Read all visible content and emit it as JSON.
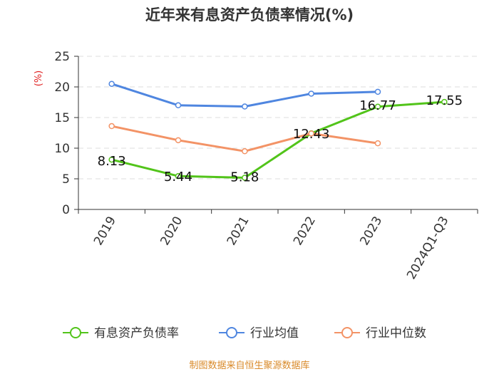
{
  "chart_data": {
    "type": "line",
    "title": "近年来有息资产负债率情况(%)",
    "ylabel": "(%)",
    "categories": [
      "2019",
      "2020",
      "2021",
      "2022",
      "2023",
      "2024Q1-Q3"
    ],
    "ylim": [
      0,
      25
    ],
    "yticks": [
      0,
      5,
      10,
      15,
      20,
      25
    ],
    "grid": true,
    "legend_position": "bottom",
    "series": [
      {
        "name": "有息资产负债率",
        "color": "#52c41a",
        "values": [
          8.13,
          5.44,
          5.18,
          12.43,
          16.77,
          17.55
        ],
        "labels": [
          "8.13",
          "5.44",
          "5.18",
          "12.43",
          "16.77",
          "17.55"
        ]
      },
      {
        "name": "行业均值",
        "color": "#4f86e0",
        "values": [
          20.5,
          17.0,
          16.8,
          18.9,
          19.2,
          null
        ]
      },
      {
        "name": "行业中位数",
        "color": "#f39366",
        "values": [
          13.6,
          11.3,
          9.5,
          12.4,
          10.8,
          null
        ]
      }
    ]
  },
  "footer": "制图数据来自恒生聚源数据库"
}
